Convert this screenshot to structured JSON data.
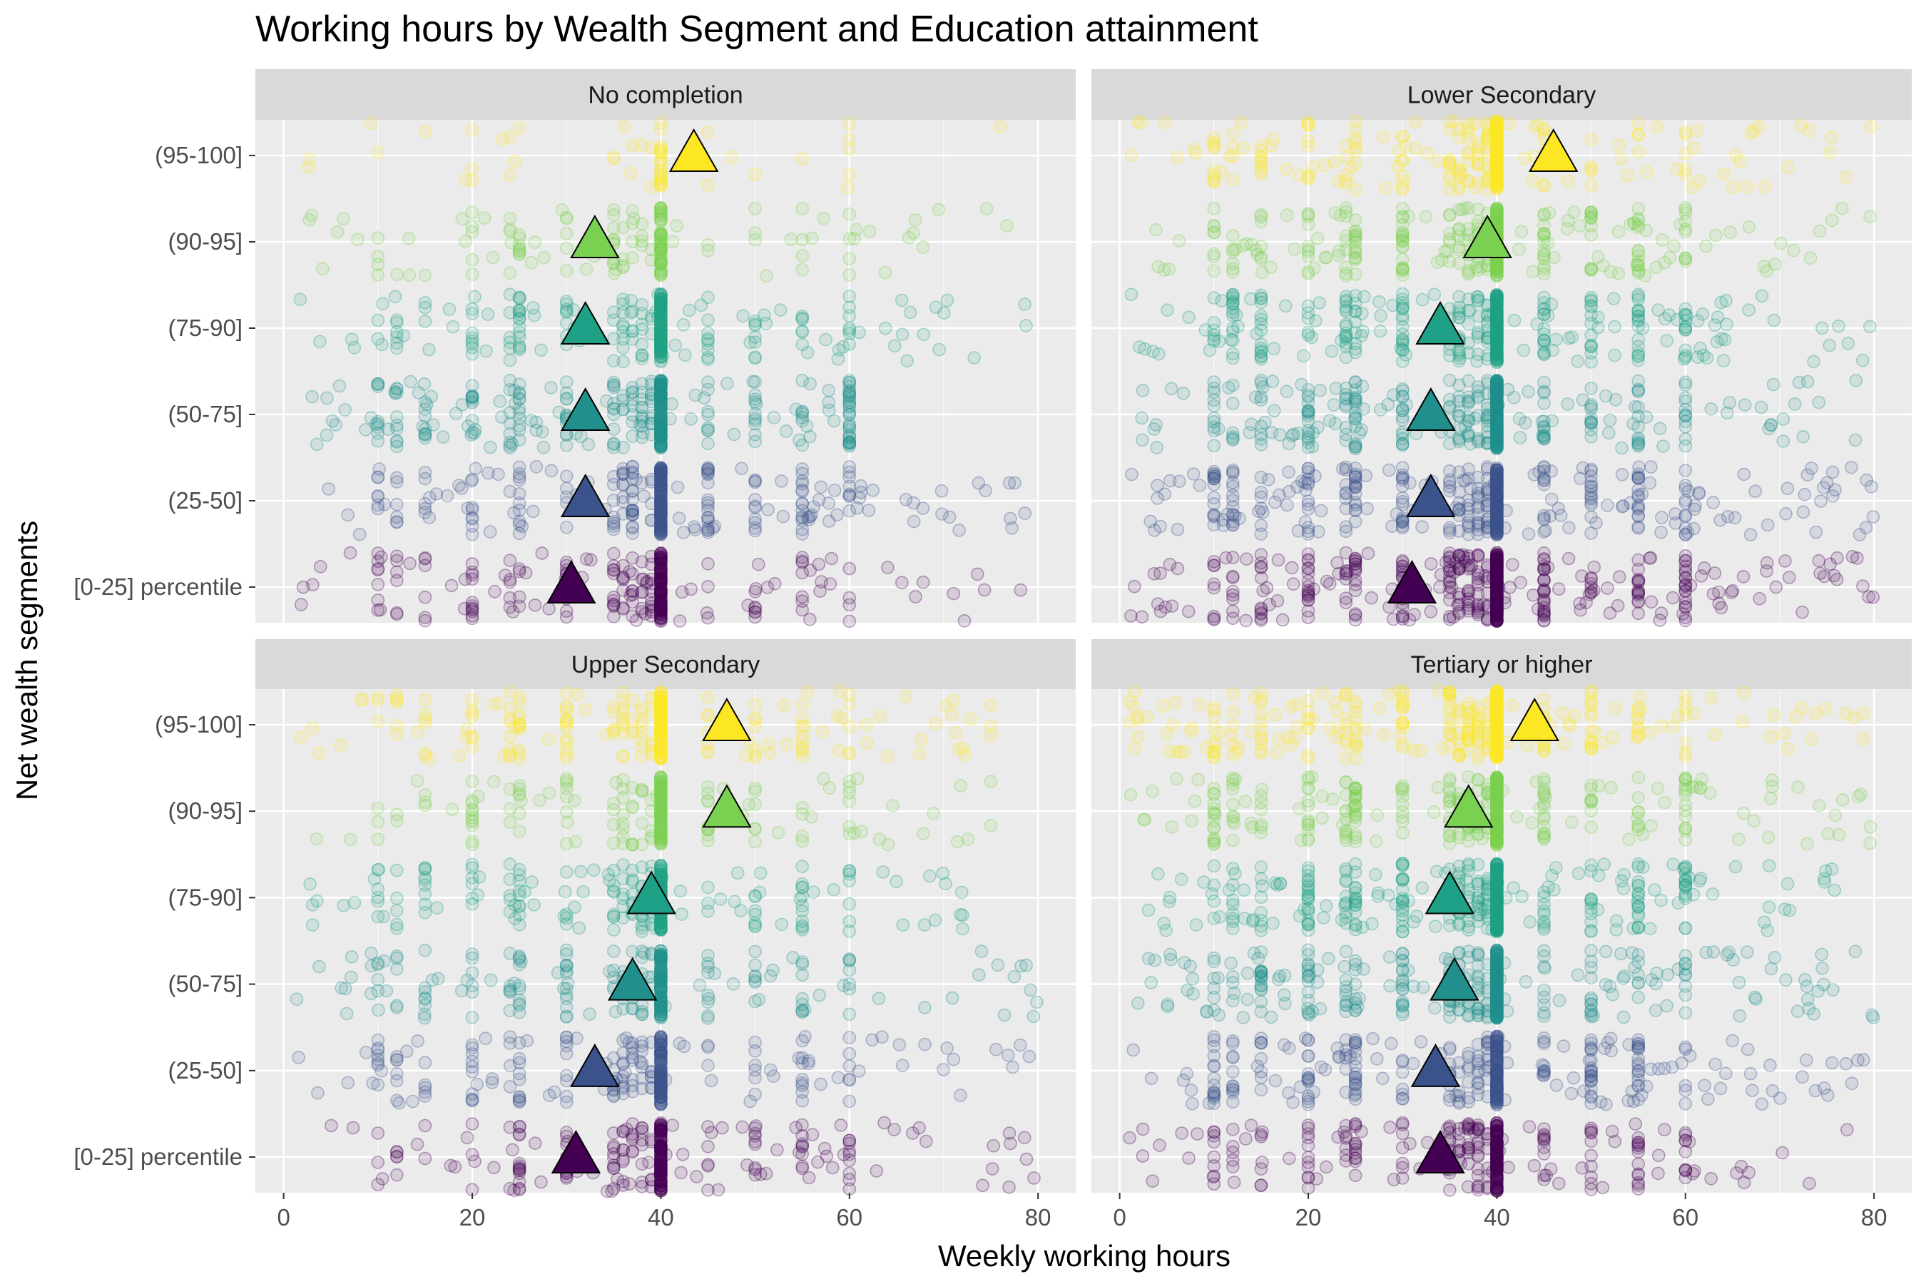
{
  "colors": {
    "panel_background": "#EBEBEB",
    "strip_background": "#D9D9D9",
    "grid": "#FFFFFF",
    "segments": [
      "#440154",
      "#3B528B",
      "#21908C",
      "#1FA187",
      "#7AD151",
      "#FDE725"
    ]
  },
  "chart_data": {
    "type": "scatter",
    "title": "Working hours by Wealth Segment and Education attainment",
    "xlabel": "Weekly working hours",
    "ylabel": "Net wealth segments",
    "xlim": [
      -3,
      84
    ],
    "x_ticks": [
      0,
      20,
      40,
      60,
      80
    ],
    "categories": [
      "[0-25] percentile",
      "(25-50]",
      "(50-75]",
      "(75-90]",
      "(90-95]",
      "(95-100]"
    ],
    "grid": true,
    "legend": "none",
    "facets": [
      {
        "label": "No completion",
        "mean_hours": [
          30.5,
          32,
          32,
          32,
          33,
          43.5
        ],
        "max_hours": [
          80,
          80,
          60,
          80,
          80,
          80
        ],
        "density": [
          5,
          6,
          7,
          5,
          3,
          1
        ]
      },
      {
        "label": "Lower Secondary",
        "mean_hours": [
          31,
          33,
          33,
          34,
          39,
          46
        ],
        "max_hours": [
          80,
          80,
          80,
          80,
          80,
          80
        ],
        "density": [
          10,
          9,
          9,
          8,
          7,
          6
        ]
      },
      {
        "label": "Upper Secondary",
        "mean_hours": [
          31,
          33,
          37,
          39,
          47,
          47
        ],
        "max_hours": [
          80,
          80,
          80,
          72,
          75,
          75
        ],
        "density": [
          5,
          5,
          5,
          5,
          4,
          5
        ]
      },
      {
        "label": "Tertiary or higher",
        "mean_hours": [
          34,
          33.5,
          35.5,
          35,
          37,
          44
        ],
        "max_hours": [
          80,
          80,
          80,
          80,
          80,
          80
        ],
        "density": [
          6,
          7,
          9,
          9,
          8,
          8
        ]
      }
    ]
  }
}
